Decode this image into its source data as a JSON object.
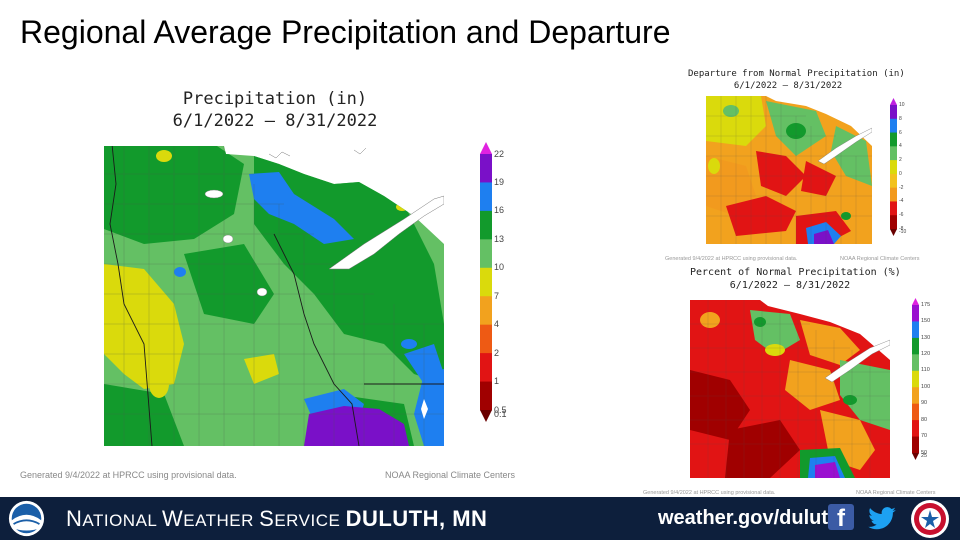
{
  "slide": {
    "title": "Regional Average Precipitation and Departure"
  },
  "main_map": {
    "title_line1": "Precipitation (in)",
    "title_line2": "6/1/2022 – 8/31/2022",
    "footnote_left": "Generated 9/4/2022 at HPRCC using provisional data.",
    "footnote_right": "NOAA Regional Climate Centers",
    "legend": [
      {
        "label": "22",
        "color": "#e022e0"
      },
      {
        "label": "19",
        "color": "#7a10c8"
      },
      {
        "label": "16",
        "color": "#1e7ff0"
      },
      {
        "label": "13",
        "color": "#129a2c"
      },
      {
        "label": "10",
        "color": "#64c064"
      },
      {
        "label": "7",
        "color": "#dada0c"
      },
      {
        "label": "4",
        "color": "#f2a21e"
      },
      {
        "label": "2",
        "color": "#ee5a14"
      },
      {
        "label": "1",
        "color": "#e11414"
      },
      {
        "label": "0.5",
        "color": "#a00000"
      },
      {
        "label": "0.1",
        "color": "#6a0000"
      }
    ]
  },
  "departure_map": {
    "title_line1": "Departure from Normal Precipitation (in)",
    "title_line2": "6/1/2022 – 8/31/2022",
    "footnote_left": "Generated 9/4/2022 at HPRCC using provisional data.",
    "footnote_right": "NOAA Regional Climate Centers",
    "legend": [
      {
        "label": "10",
        "color": "#c020e0"
      },
      {
        "label": "8",
        "color": "#7a10c8"
      },
      {
        "label": "6",
        "color": "#1e7ff0"
      },
      {
        "label": "4",
        "color": "#129a2c"
      },
      {
        "label": "2",
        "color": "#64c064"
      },
      {
        "label": "0",
        "color": "#dada0c"
      },
      {
        "label": "-2",
        "color": "#f2c21e"
      },
      {
        "label": "-4",
        "color": "#f29a1e"
      },
      {
        "label": "-6",
        "color": "#e11414"
      },
      {
        "label": "-8",
        "color": "#a00000"
      },
      {
        "label": "-10",
        "color": "#6a0000"
      }
    ]
  },
  "percent_map": {
    "title_line1": "Percent of Normal Precipitation (%)",
    "title_line2": "6/1/2022 – 8/31/2022",
    "footnote_left": "Generated 9/4/2022 at HPRCC using provisional data.",
    "footnote_right": "NOAA Regional Climate Centers",
    "legend": [
      {
        "label": "175",
        "color": "#e022e0"
      },
      {
        "label": "150",
        "color": "#9a10d0"
      },
      {
        "label": "130",
        "color": "#1e7ff0"
      },
      {
        "label": "120",
        "color": "#129a2c"
      },
      {
        "label": "110",
        "color": "#64c064"
      },
      {
        "label": "100",
        "color": "#dada0c"
      },
      {
        "label": "90",
        "color": "#f2a21e"
      },
      {
        "label": "80",
        "color": "#ee5a14"
      },
      {
        "label": "70",
        "color": "#e11414"
      },
      {
        "label": "50",
        "color": "#a00000"
      },
      {
        "label": "25",
        "color": "#6a0000"
      }
    ]
  },
  "footer": {
    "nws_prefix_big_n": "N",
    "nws_prefix_rest_1": "ATIONAL ",
    "nws_w": "W",
    "nws_rest_2": "EATHER ",
    "nws_s": "S",
    "nws_rest_3": "ERVICE ",
    "office": "DULUTH, MN",
    "url": "weather.gov/duluth",
    "facebook_icon": "facebook-icon",
    "twitter_icon": "twitter-icon",
    "noaa_logo": "noaa-logo",
    "nws_logo": "nws-logo"
  }
}
